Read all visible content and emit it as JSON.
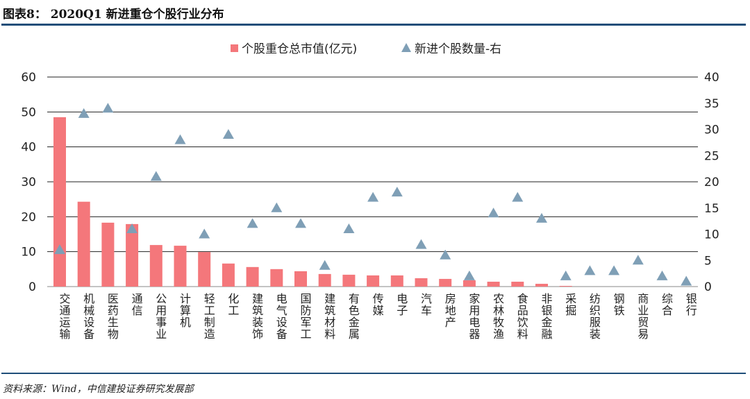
{
  "header": {
    "title": "图表8：  2020Q1 新进重仓个股行业分布"
  },
  "footer": {
    "source": "资料来源：Wind，中信建投证券研究发展部"
  },
  "chart_data": {
    "type": "bar",
    "title": "2020Q1 新进重仓个股行业分布",
    "categories": [
      "交通运输",
      "机械设备",
      "医药生物",
      "通信",
      "公用事业",
      "计算机",
      "轻工制造",
      "化工",
      "建筑装饰",
      "电气设备",
      "国防军工",
      "建筑材料",
      "有色金属",
      "传媒",
      "电子",
      "汽车",
      "房地产",
      "家用电器",
      "农林牧渔",
      "食品饮料",
      "非银金融",
      "采掘",
      "纺织服装",
      "钢铁",
      "商业贸易",
      "综合",
      "银行"
    ],
    "series": [
      {
        "name": "个股重仓总市值(亿元)",
        "type": "bar",
        "axis": "left",
        "color": "#f4777b",
        "values": [
          48.5,
          24.3,
          18.3,
          17.9,
          11.9,
          11.7,
          9.9,
          6.6,
          5.6,
          5.0,
          4.4,
          3.6,
          3.4,
          3.2,
          3.2,
          2.4,
          2.2,
          1.8,
          1.4,
          1.4,
          0.8,
          0.2,
          0,
          0,
          0,
          0,
          0
        ]
      },
      {
        "name": "新进个股数量-右",
        "type": "scatter",
        "marker": "triangle",
        "axis": "right",
        "color": "#7f9fb6",
        "values": [
          7,
          33,
          34,
          11,
          21,
          28,
          10,
          29,
          12,
          15,
          12,
          4,
          11,
          17,
          18,
          8,
          6,
          2,
          14,
          17,
          13,
          2,
          3,
          3,
          5,
          2,
          1
        ]
      }
    ],
    "ylim": [
      0,
      60
    ],
    "yticks": [
      0,
      10,
      20,
      30,
      40,
      50,
      60
    ],
    "y2lim": [
      0,
      40
    ],
    "y2ticks": [
      0,
      5,
      10,
      15,
      20,
      25,
      30,
      35,
      40
    ],
    "grid": true,
    "legend": "top-center"
  }
}
